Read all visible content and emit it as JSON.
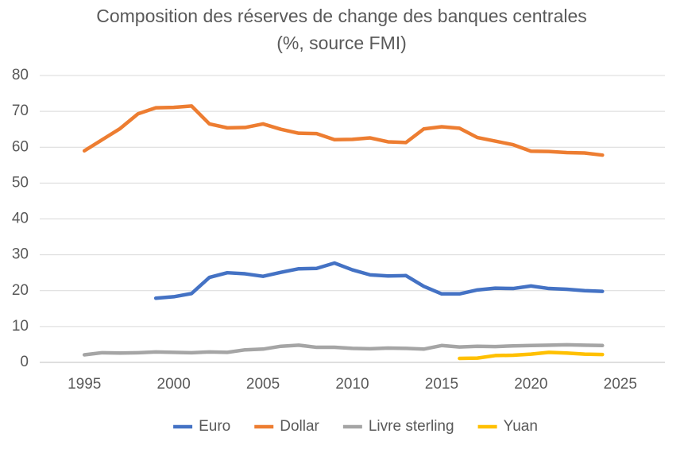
{
  "chart_data": {
    "type": "line",
    "title": "Composition des réserves de change des banques centrales",
    "subtitle": "(%, source FMI)",
    "x": [
      1995,
      1996,
      1997,
      1998,
      1999,
      2000,
      2001,
      2002,
      2003,
      2004,
      2005,
      2006,
      2007,
      2008,
      2009,
      2010,
      2011,
      2012,
      2013,
      2014,
      2015,
      2016,
      2017,
      2018,
      2019,
      2020,
      2021,
      2022,
      2023,
      2024
    ],
    "series": [
      {
        "name": "Euro",
        "color": "#4472c4",
        "values": [
          null,
          null,
          null,
          null,
          17.9,
          18.3,
          19.2,
          23.7,
          25.0,
          24.7,
          24.0,
          25.1,
          26.1,
          26.2,
          27.7,
          25.8,
          24.4,
          24.1,
          24.2,
          21.2,
          19.1,
          19.1,
          20.2,
          20.7,
          20.6,
          21.3,
          20.6,
          20.4,
          20.0,
          19.8
        ]
      },
      {
        "name": "Dollar",
        "color": "#ed7d31",
        "values": [
          59.0,
          62.1,
          65.2,
          69.3,
          71.0,
          71.1,
          71.5,
          66.5,
          65.4,
          65.5,
          66.5,
          65.0,
          63.9,
          63.8,
          62.1,
          62.2,
          62.6,
          61.5,
          61.3,
          65.1,
          65.7,
          65.3,
          62.7,
          61.7,
          60.7,
          58.9,
          58.8,
          58.5,
          58.4,
          57.8
        ]
      },
      {
        "name": "Livre sterling",
        "color": "#a5a5a5",
        "values": [
          2.1,
          2.7,
          2.6,
          2.7,
          2.9,
          2.8,
          2.7,
          2.9,
          2.8,
          3.5,
          3.7,
          4.5,
          4.8,
          4.2,
          4.2,
          3.9,
          3.8,
          4.0,
          3.9,
          3.7,
          4.7,
          4.3,
          4.5,
          4.4,
          4.6,
          4.7,
          4.8,
          4.9,
          4.8,
          4.7
        ]
      },
      {
        "name": "Yuan",
        "color": "#ffc000",
        "values": [
          null,
          null,
          null,
          null,
          null,
          null,
          null,
          null,
          null,
          null,
          null,
          null,
          null,
          null,
          null,
          null,
          null,
          null,
          null,
          null,
          null,
          1.1,
          1.2,
          1.9,
          2.0,
          2.3,
          2.8,
          2.6,
          2.3,
          2.2
        ]
      }
    ],
    "xlim": [
      1992.5,
      2027.5
    ],
    "xticks": [
      1995,
      2000,
      2005,
      2010,
      2015,
      2020,
      2025
    ],
    "ylim": [
      0,
      80
    ],
    "yticks": [
      0,
      10,
      20,
      30,
      40,
      50,
      60,
      70,
      80
    ],
    "grid": true,
    "legend": "bottom"
  }
}
